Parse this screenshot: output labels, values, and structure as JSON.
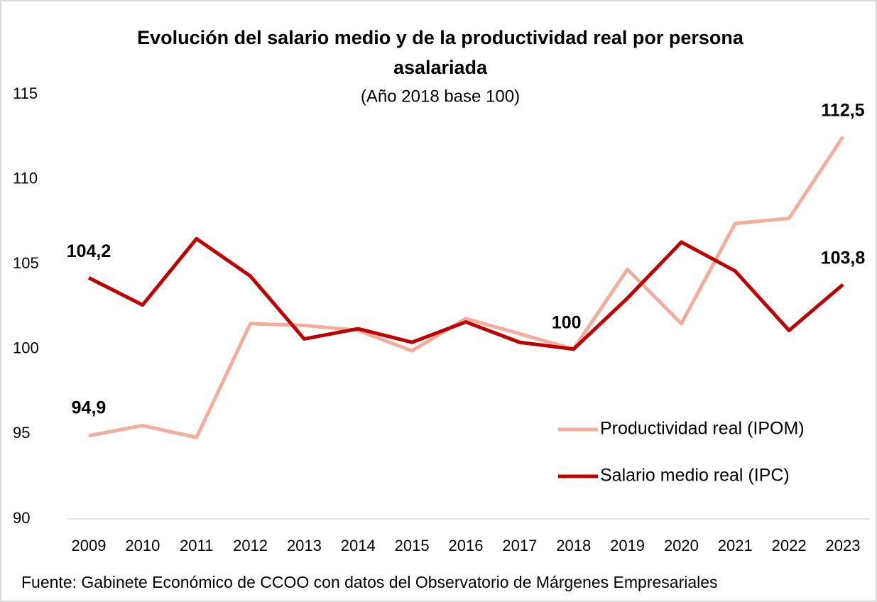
{
  "chart_data": {
    "type": "line",
    "title": "Evolución del salario medio y de la productividad real por persona asalariada",
    "subtitle": "(Año 2018 base 100)",
    "source": "Fuente: Gabinete Económico de CCOO con datos del Observatorio de Márgenes Empresariales",
    "categories": [
      "2009",
      "2010",
      "2011",
      "2012",
      "2013",
      "2014",
      "2015",
      "2016",
      "2017",
      "2018",
      "2019",
      "2020",
      "2021",
      "2022",
      "2023"
    ],
    "series": [
      {
        "name": "Productividad real (IPOM)",
        "color": "#f2ad9c",
        "values": [
          94.9,
          95.5,
          94.8,
          101.5,
          101.4,
          101.1,
          99.9,
          101.8,
          100.9,
          100,
          104.7,
          101.5,
          107.4,
          107.7,
          112.5
        ],
        "value_labels": [
          "94,9",
          null,
          null,
          null,
          null,
          null,
          null,
          null,
          null,
          null,
          null,
          null,
          null,
          null,
          "112,5"
        ]
      },
      {
        "name": "Salario medio real (IPC)",
        "color": "#c00000",
        "values": [
          104.2,
          102.6,
          106.5,
          104.3,
          100.6,
          101.2,
          100.4,
          101.6,
          100.4,
          100,
          103,
          106.3,
          104.6,
          101.1,
          103.8
        ],
        "value_labels": [
          "104,2",
          null,
          null,
          null,
          null,
          null,
          null,
          null,
          null,
          "100",
          null,
          null,
          null,
          null,
          "103,8"
        ]
      }
    ],
    "ylim": [
      90,
      115
    ],
    "yticks": [
      90,
      95,
      100,
      105,
      110,
      115
    ],
    "grid": false,
    "legend": "lower right"
  }
}
